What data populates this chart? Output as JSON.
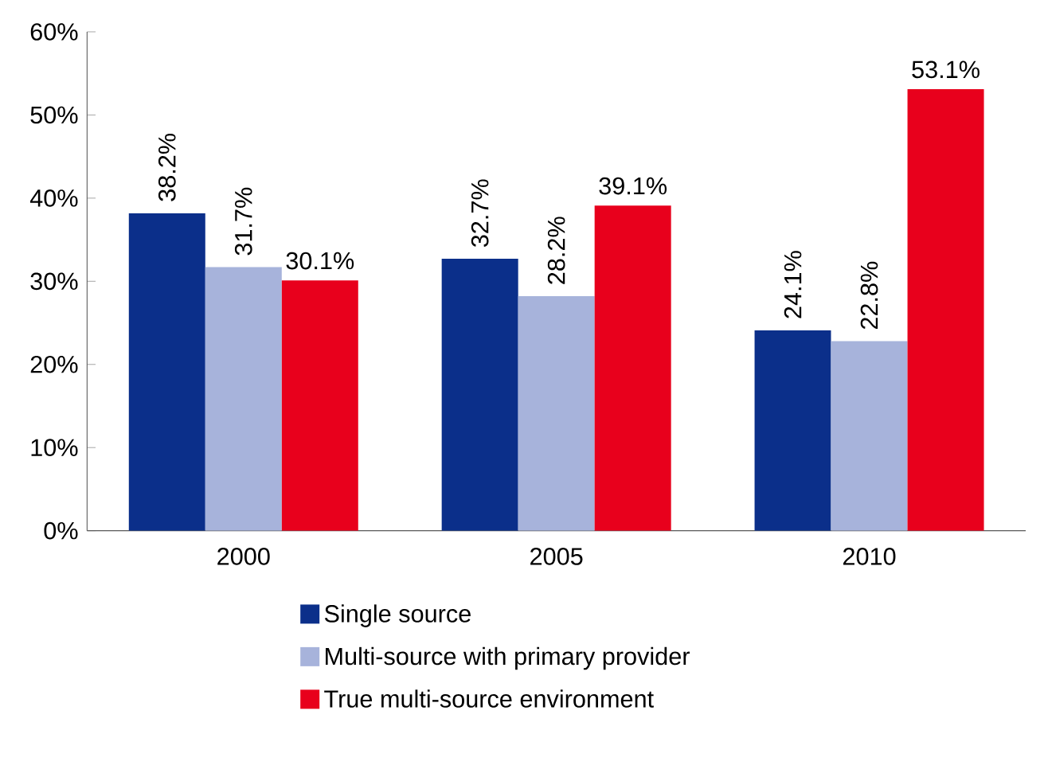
{
  "chart_data": {
    "type": "bar",
    "categories": [
      "2000",
      "2005",
      "2010"
    ],
    "series": [
      {
        "name": "Single source",
        "color": "#0b2f8a",
        "values": [
          38.2,
          32.7,
          24.1
        ],
        "value_labels": [
          "38.2%",
          "32.7%",
          "24.1%"
        ]
      },
      {
        "name": "Multi-source with primary provider",
        "color": "#a7b3db",
        "values": [
          31.7,
          28.2,
          22.8
        ],
        "value_labels": [
          "31.7%",
          "28.2%",
          "22.8%"
        ]
      },
      {
        "name": "True multi-source environment",
        "color": "#e8001c",
        "values": [
          30.1,
          39.1,
          53.1
        ],
        "value_labels": [
          "30.1%",
          "39.1%",
          "53.1%"
        ]
      }
    ],
    "ylim": [
      0,
      60
    ],
    "yticks": [
      {
        "value": 0,
        "label": "0%"
      },
      {
        "value": 10,
        "label": "10%"
      },
      {
        "value": 20,
        "label": "20%"
      },
      {
        "value": 30,
        "label": "30%"
      },
      {
        "value": 40,
        "label": "40%"
      },
      {
        "value": 50,
        "label": "50%"
      },
      {
        "value": 60,
        "label": "60%"
      }
    ],
    "legend": "bottom",
    "grid": false
  }
}
